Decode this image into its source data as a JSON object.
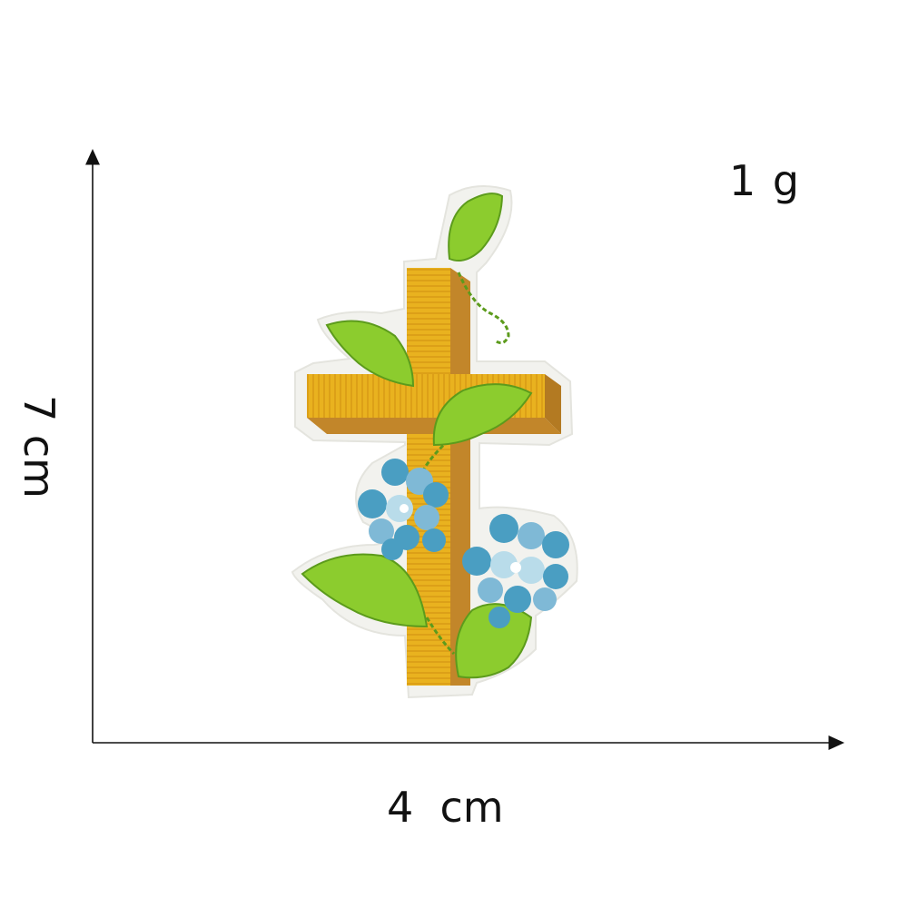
{
  "labels": {
    "weight": "1 g",
    "width": "4  cm",
    "height": "7 cm"
  },
  "colors": {
    "cross_light": "#e9b21f",
    "cross_dark": "#c2862a",
    "leaf": "#8ccc2e",
    "leaf_dark": "#5c9b1c",
    "flower_blue": "#4a9ec2",
    "flower_light": "#b9dcea",
    "felt": "#f2f2ee"
  },
  "icons": {
    "patch": "embroidered-cross-patch"
  }
}
